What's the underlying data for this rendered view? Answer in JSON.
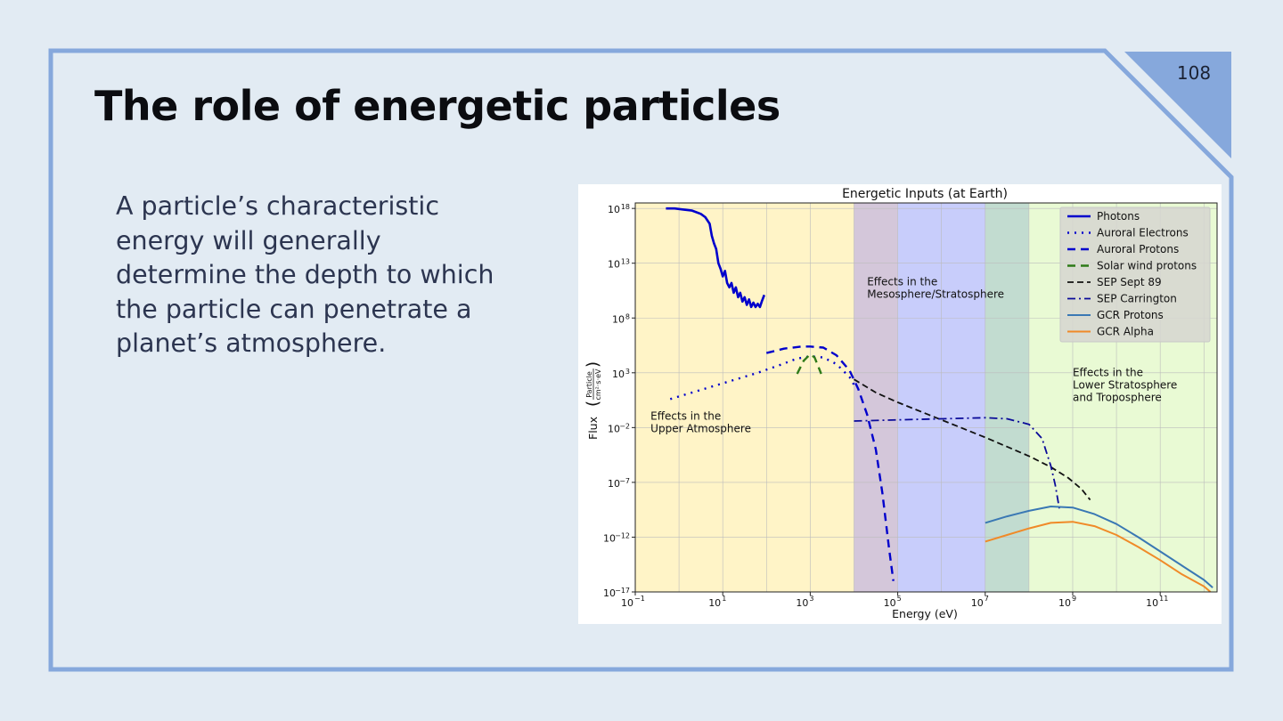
{
  "slide": {
    "page_number": "108",
    "title": "The role of energetic particles",
    "body": "A particle’s characteristic energy will generally determine the depth to which the particle can penetrate a planet’s atmosphere.",
    "colors": {
      "background": "#e2ebf3",
      "frame": "#86a8dc",
      "corner": "#86a8dc",
      "title": "#0b0c10",
      "body": "#2c3550"
    }
  },
  "chart_data": {
    "type": "line",
    "title": "Energetic Inputs (at Earth)",
    "xlabel": "Energy (eV)",
    "ylabel": "Flux",
    "ylabel_unit_numerator": "Particle",
    "ylabel_unit_denominator": "cm²·s·eV",
    "x_scale": "log",
    "y_scale": "log",
    "xlim_exp": [
      -1,
      12.3
    ],
    "ylim_exp": [
      -17,
      18.5
    ],
    "x_ticks": [
      {
        "base": "10",
        "exp": "−1",
        "value": -1
      },
      {
        "base": "10",
        "exp": "1",
        "value": 1
      },
      {
        "base": "10",
        "exp": "3",
        "value": 3
      },
      {
        "base": "10",
        "exp": "5",
        "value": 5
      },
      {
        "base": "10",
        "exp": "7",
        "value": 7
      },
      {
        "base": "10",
        "exp": "9",
        "value": 9
      },
      {
        "base": "10",
        "exp": "11",
        "value": 11
      }
    ],
    "y_ticks": [
      {
        "base": "10",
        "exp": "18",
        "value": 18
      },
      {
        "base": "10",
        "exp": "13",
        "value": 13
      },
      {
        "base": "10",
        "exp": "8",
        "value": 8
      },
      {
        "base": "10",
        "exp": "3",
        "value": 3
      },
      {
        "base": "10",
        "exp": "−2",
        "value": -2
      },
      {
        "base": "10",
        "exp": "−7",
        "value": -7
      },
      {
        "base": "10",
        "exp": "−12",
        "value": -12
      },
      {
        "base": "10",
        "exp": "−17",
        "value": -17
      }
    ],
    "grid": true,
    "legend_position": "top-right",
    "regions": [
      {
        "from": -1,
        "to": 4,
        "color": "#fff4c7"
      },
      {
        "from": 4,
        "to": 5,
        "color": "#d4c7da"
      },
      {
        "from": 5,
        "to": 7,
        "color": "#c8cdfb"
      },
      {
        "from": 7,
        "to": 8,
        "color": "#c2dcd0"
      },
      {
        "from": 8,
        "to": 12.3,
        "color": "#e9fad4"
      }
    ],
    "annotations": [
      {
        "lines": [
          "Effects in the",
          "Upper Atmosphere"
        ],
        "x": -0.65,
        "y": -1.3
      },
      {
        "lines": [
          "Effects in the",
          "Mesosphere/Stratosphere"
        ],
        "x": 4.3,
        "y": 11.0
      },
      {
        "lines": [
          "Effects in the",
          "Lower Stratosphere",
          "and Troposphere"
        ],
        "x": 9.0,
        "y": 2.7
      }
    ],
    "series": [
      {
        "name": "Photons",
        "color": "#0000cc",
        "width": 2.6,
        "dash": "",
        "points": [
          [
            -0.3,
            18.0
          ],
          [
            -0.1,
            18.0
          ],
          [
            0.1,
            17.9
          ],
          [
            0.3,
            17.8
          ],
          [
            0.5,
            17.5
          ],
          [
            0.6,
            17.2
          ],
          [
            0.7,
            16.6
          ],
          [
            0.75,
            15.5
          ],
          [
            0.8,
            14.8
          ],
          [
            0.85,
            14.3
          ],
          [
            0.9,
            13.0
          ],
          [
            0.95,
            12.5
          ],
          [
            1.0,
            11.8
          ],
          [
            1.05,
            12.3
          ],
          [
            1.1,
            11.2
          ],
          [
            1.15,
            10.8
          ],
          [
            1.2,
            11.2
          ],
          [
            1.25,
            10.3
          ],
          [
            1.3,
            10.8
          ],
          [
            1.35,
            9.9
          ],
          [
            1.4,
            10.3
          ],
          [
            1.45,
            9.5
          ],
          [
            1.5,
            9.9
          ],
          [
            1.55,
            9.2
          ],
          [
            1.6,
            9.7
          ],
          [
            1.65,
            9.0
          ],
          [
            1.7,
            9.4
          ],
          [
            1.75,
            9.0
          ],
          [
            1.8,
            9.3
          ],
          [
            1.85,
            9.0
          ],
          [
            1.9,
            9.6
          ],
          [
            1.95,
            10.1
          ]
        ]
      },
      {
        "name": "Auroral Electrons",
        "color": "#0000cc",
        "width": 2.4,
        "dash": "2,6",
        "points": [
          [
            -0.2,
            0.6
          ],
          [
            0.3,
            1.2
          ],
          [
            0.8,
            1.8
          ],
          [
            1.3,
            2.4
          ],
          [
            1.8,
            3.0
          ],
          [
            2.3,
            3.7
          ],
          [
            2.7,
            4.3
          ],
          [
            3.0,
            4.5
          ],
          [
            3.3,
            4.4
          ],
          [
            3.6,
            3.8
          ],
          [
            3.9,
            2.6
          ],
          [
            4.0,
            1.9
          ]
        ]
      },
      {
        "name": "Auroral Protons",
        "color": "#0000cc",
        "width": 2.4,
        "dash": "9,6",
        "points": [
          [
            2.0,
            4.8
          ],
          [
            2.4,
            5.2
          ],
          [
            2.8,
            5.4
          ],
          [
            3.0,
            5.4
          ],
          [
            3.3,
            5.3
          ],
          [
            3.6,
            4.6
          ],
          [
            3.9,
            3.2
          ],
          [
            4.1,
            1.5
          ],
          [
            4.3,
            -0.8
          ],
          [
            4.5,
            -4.0
          ],
          [
            4.65,
            -8.0
          ],
          [
            4.8,
            -13.0
          ],
          [
            4.9,
            -16.0
          ]
        ]
      },
      {
        "name": "Solar wind  protons",
        "color": "#2e7a18",
        "width": 2.4,
        "dash": "9,6",
        "points": [
          [
            2.7,
            2.9
          ],
          [
            2.85,
            4.1
          ],
          [
            3.0,
            4.7
          ],
          [
            3.1,
            4.4
          ],
          [
            3.25,
            2.9
          ]
        ]
      },
      {
        "name": "SEP Sept 89",
        "color": "#111111",
        "width": 1.8,
        "dash": "7,4",
        "points": [
          [
            4.0,
            2.4
          ],
          [
            4.5,
            1.2
          ],
          [
            5.0,
            0.3
          ],
          [
            6.0,
            -1.3
          ],
          [
            7.0,
            -2.9
          ],
          [
            8.0,
            -4.6
          ],
          [
            8.5,
            -5.6
          ],
          [
            8.9,
            -6.6
          ],
          [
            9.2,
            -7.6
          ],
          [
            9.4,
            -8.6
          ]
        ]
      },
      {
        "name": "SEP Carrington",
        "color": "#0a0a99",
        "width": 1.8,
        "dash": "9,4,2,4",
        "points": [
          [
            4.0,
            -1.4
          ],
          [
            5.0,
            -1.3
          ],
          [
            6.0,
            -1.2
          ],
          [
            7.0,
            -1.1
          ],
          [
            7.5,
            -1.2
          ],
          [
            8.0,
            -1.7
          ],
          [
            8.3,
            -3.0
          ],
          [
            8.5,
            -5.5
          ],
          [
            8.6,
            -7.2
          ],
          [
            8.7,
            -9.5
          ]
        ]
      },
      {
        "name": "GCR Protons",
        "color": "#3a78b4",
        "width": 2.0,
        "dash": "",
        "points": [
          [
            7.0,
            -10.7
          ],
          [
            7.5,
            -10.1
          ],
          [
            8.0,
            -9.6
          ],
          [
            8.5,
            -9.2
          ],
          [
            9.0,
            -9.3
          ],
          [
            9.5,
            -9.9
          ],
          [
            10.0,
            -10.8
          ],
          [
            10.5,
            -12.0
          ],
          [
            11.0,
            -13.3
          ],
          [
            11.5,
            -14.6
          ],
          [
            12.0,
            -15.9
          ],
          [
            12.2,
            -16.6
          ]
        ]
      },
      {
        "name": "GCR Alpha",
        "color": "#f08a28",
        "width": 2.0,
        "dash": "",
        "points": [
          [
            7.0,
            -12.4
          ],
          [
            7.5,
            -11.8
          ],
          [
            8.0,
            -11.2
          ],
          [
            8.5,
            -10.7
          ],
          [
            9.0,
            -10.6
          ],
          [
            9.5,
            -11.0
          ],
          [
            10.0,
            -11.8
          ],
          [
            10.5,
            -12.9
          ],
          [
            11.0,
            -14.1
          ],
          [
            11.5,
            -15.4
          ],
          [
            12.0,
            -16.5
          ],
          [
            12.15,
            -17.0
          ]
        ]
      }
    ]
  }
}
